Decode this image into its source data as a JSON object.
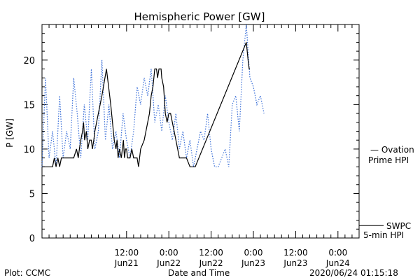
{
  "chart_data": {
    "type": "line",
    "title": "Hemispheric Power [GW]",
    "xlabel": "Date and Time",
    "ylabel": "P [GW]",
    "ylim": [
      0,
      24
    ],
    "yticks": [
      0,
      5,
      10,
      15,
      20
    ],
    "x_unit": "hours since 2020-06-20 12:00 UT",
    "xlim": [
      0,
      90
    ],
    "xticks": [
      {
        "x": 24,
        "time": "12:00",
        "date": "Jun21"
      },
      {
        "x": 36,
        "time": "0:00",
        "date": "Jun22"
      },
      {
        "x": 48,
        "time": "12:00",
        "date": "Jun22"
      },
      {
        "x": 60,
        "time": "0:00",
        "date": "Jun23"
      },
      {
        "x": 72,
        "time": "12:00",
        "date": "Jun23"
      },
      {
        "x": 84,
        "time": "0:00",
        "date": "Jun24"
      }
    ],
    "series": [
      {
        "name": "SWPC 5-min HPI",
        "color": "#000000",
        "style": "solid",
        "points": [
          [
            0,
            8
          ],
          [
            3,
            8
          ],
          [
            3.5,
            9
          ],
          [
            4,
            8
          ],
          [
            4.5,
            9
          ],
          [
            5,
            8
          ],
          [
            5.5,
            9
          ],
          [
            6,
            9
          ],
          [
            9,
            9
          ],
          [
            9.8,
            10
          ],
          [
            10.3,
            9
          ],
          [
            10.6,
            10
          ],
          [
            11,
            11
          ],
          [
            11.5,
            12
          ],
          [
            11.8,
            13
          ],
          [
            12.1,
            11
          ],
          [
            12.6,
            12
          ],
          [
            13,
            10
          ],
          [
            13.5,
            11
          ],
          [
            14,
            11
          ],
          [
            14.3,
            10
          ],
          [
            14.7,
            11
          ],
          [
            15,
            12
          ],
          [
            16,
            14
          ],
          [
            17,
            16
          ],
          [
            18.3,
            19
          ],
          [
            19.5,
            15
          ],
          [
            20,
            13
          ],
          [
            20.5,
            11
          ],
          [
            21,
            10
          ],
          [
            21.3,
            11
          ],
          [
            21.6,
            9
          ],
          [
            22,
            10
          ],
          [
            22.5,
            9
          ],
          [
            22.8,
            10
          ],
          [
            23.1,
            11
          ],
          [
            23.4,
            9
          ],
          [
            23.7,
            10
          ],
          [
            24,
            10
          ],
          [
            24.3,
            9
          ],
          [
            25,
            9
          ],
          [
            25.5,
            10
          ],
          [
            26,
            9
          ],
          [
            27,
            9
          ],
          [
            27.4,
            8
          ],
          [
            28,
            10
          ],
          [
            29,
            11
          ],
          [
            30,
            13
          ],
          [
            30.5,
            14
          ],
          [
            31,
            16
          ],
          [
            31.5,
            17
          ],
          [
            32,
            19
          ],
          [
            32.5,
            19
          ],
          [
            32.8,
            18
          ],
          [
            33.2,
            19
          ],
          [
            33.8,
            19
          ],
          [
            34,
            18
          ],
          [
            34.5,
            17
          ],
          [
            35,
            14
          ],
          [
            35.5,
            13
          ],
          [
            36,
            14
          ],
          [
            36.5,
            14
          ],
          [
            37,
            13
          ],
          [
            37.5,
            12
          ],
          [
            38,
            11
          ],
          [
            38.5,
            10
          ],
          [
            39,
            9
          ],
          [
            41,
            9
          ],
          [
            42,
            8
          ],
          [
            43.5,
            8
          ],
          [
            58,
            22
          ],
          [
            58.5,
            20
          ],
          [
            58.8,
            19
          ],
          [
            59,
            19
          ]
        ]
      },
      {
        "name": "Ovation Prime HPI",
        "color": "#3a6fd8",
        "style": "dotted",
        "points": [
          [
            0,
            8
          ],
          [
            1,
            18
          ],
          [
            2,
            9
          ],
          [
            3,
            12
          ],
          [
            4,
            8
          ],
          [
            5,
            16
          ],
          [
            6,
            9
          ],
          [
            7,
            12
          ],
          [
            8,
            10
          ],
          [
            9,
            18
          ],
          [
            10,
            14
          ],
          [
            11,
            9
          ],
          [
            12,
            15
          ],
          [
            13,
            11
          ],
          [
            14,
            19
          ],
          [
            15,
            10
          ],
          [
            16,
            12
          ],
          [
            17,
            20
          ],
          [
            18,
            11
          ],
          [
            19,
            15
          ],
          [
            20,
            10
          ],
          [
            21,
            12
          ],
          [
            22,
            9
          ],
          [
            23,
            14
          ],
          [
            24,
            11
          ],
          [
            25,
            9
          ],
          [
            26,
            12
          ],
          [
            27,
            17
          ],
          [
            28,
            15
          ],
          [
            29,
            18
          ],
          [
            30,
            16
          ],
          [
            31,
            19
          ],
          [
            32,
            13
          ],
          [
            33,
            15
          ],
          [
            34,
            12
          ],
          [
            35,
            16
          ],
          [
            36,
            13
          ],
          [
            37,
            11
          ],
          [
            38,
            14
          ],
          [
            39,
            10
          ],
          [
            40,
            12
          ],
          [
            41,
            9
          ],
          [
            42,
            11
          ],
          [
            43,
            8
          ],
          [
            44,
            10
          ],
          [
            45,
            12
          ],
          [
            46,
            11
          ],
          [
            47,
            14
          ],
          [
            48,
            10
          ],
          [
            49,
            8
          ],
          [
            50,
            8
          ],
          [
            51,
            9
          ],
          [
            52,
            10
          ],
          [
            53,
            8
          ],
          [
            54,
            15
          ],
          [
            55,
            16
          ],
          [
            56,
            12
          ],
          [
            57,
            20
          ],
          [
            58,
            24
          ],
          [
            59,
            18
          ],
          [
            60,
            17
          ],
          [
            61,
            15
          ],
          [
            62,
            16
          ],
          [
            63,
            14
          ]
        ]
      }
    ],
    "legend": [
      {
        "series": "Ovation Prime HPI",
        "line1": "— Ovation",
        "line2": "Prime HPI",
        "color": "#3a6fd8"
      },
      {
        "series": "SWPC 5-min HPI",
        "line1": "SWPC",
        "line2": "5-min HPI",
        "color": "#000000"
      }
    ],
    "grid": false
  },
  "footer": {
    "left": "Plot: CCMC",
    "center": "Date and Time",
    "right": "2020/06/24 01:15:18"
  }
}
